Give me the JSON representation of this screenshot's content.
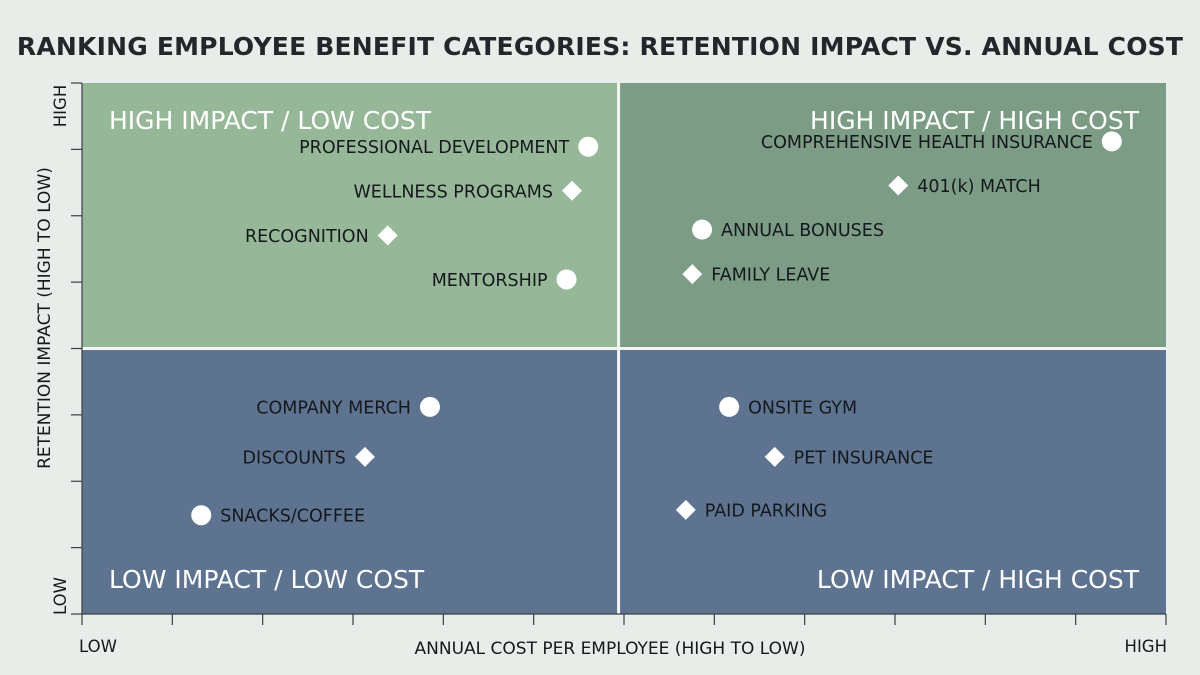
{
  "chart_data": {
    "type": "scatter",
    "title": "RANKING EMPLOYEE BENEFIT CATEGORIES: RETENTION IMPACT VS. ANNUAL COST",
    "xlabel": "ANNUAL COST PER EMPLOYEE (HIGH TO LOW)",
    "ylabel": "RETENTION IMPACT (HIGH TO LOW)",
    "x_low_label": "LOW",
    "x_high_label": "HIGH",
    "y_low_label": "LOW",
    "y_high_label": "HIGH",
    "xlim": [
      0,
      1
    ],
    "ylim": [
      0,
      1
    ],
    "grid": false,
    "colors": {
      "top_left": "#97b898",
      "top_right": "#7c9c86",
      "bottom": "#5d7390",
      "divider": "#f4f6f4",
      "marker": "#ffffff"
    },
    "quadrants": {
      "top_left": "HIGH IMPACT / LOW COST",
      "top_right": "HIGH IMPACT / HIGH COST",
      "bottom_left": "LOW IMPACT / LOW COST",
      "bottom_right": "LOW IMPACT / HIGH COST"
    },
    "points": [
      {
        "label": "PROFESSIONAL DEVELOPMENT",
        "x": 0.467,
        "y": 0.88,
        "marker": "circle",
        "label_side": "left"
      },
      {
        "label": "WELLNESS PROGRAMS",
        "x": 0.452,
        "y": 0.797,
        "marker": "diamond",
        "label_side": "left"
      },
      {
        "label": "RECOGNITION",
        "x": 0.282,
        "y": 0.713,
        "marker": "diamond",
        "label_side": "left"
      },
      {
        "label": "MENTORSHIP",
        "x": 0.447,
        "y": 0.63,
        "marker": "circle",
        "label_side": "left"
      },
      {
        "label": "COMPREHENSIVE HEALTH INSURANCE",
        "x": 0.95,
        "y": 0.89,
        "marker": "circle",
        "label_side": "left"
      },
      {
        "label": "401(k) MATCH",
        "x": 0.753,
        "y": 0.807,
        "marker": "diamond",
        "label_side": "right"
      },
      {
        "label": "ANNUAL BONUSES",
        "x": 0.572,
        "y": 0.724,
        "marker": "circle",
        "label_side": "right"
      },
      {
        "label": "FAMILY LEAVE",
        "x": 0.563,
        "y": 0.64,
        "marker": "diamond",
        "label_side": "right"
      },
      {
        "label": "COMPANY MERCH",
        "x": 0.321,
        "y": 0.39,
        "marker": "circle",
        "label_side": "left"
      },
      {
        "label": "DISCOUNTS",
        "x": 0.261,
        "y": 0.296,
        "marker": "diamond",
        "label_side": "left"
      },
      {
        "label": "SNACKS/COFFEE",
        "x": 0.11,
        "y": 0.186,
        "marker": "circle",
        "label_side": "right"
      },
      {
        "label": "ONSITE GYM",
        "x": 0.597,
        "y": 0.39,
        "marker": "circle",
        "label_side": "right"
      },
      {
        "label": "PET INSURANCE",
        "x": 0.639,
        "y": 0.296,
        "marker": "diamond",
        "label_side": "right"
      },
      {
        "label": "PAID PARKING",
        "x": 0.557,
        "y": 0.196,
        "marker": "diamond",
        "label_side": "right"
      }
    ]
  }
}
